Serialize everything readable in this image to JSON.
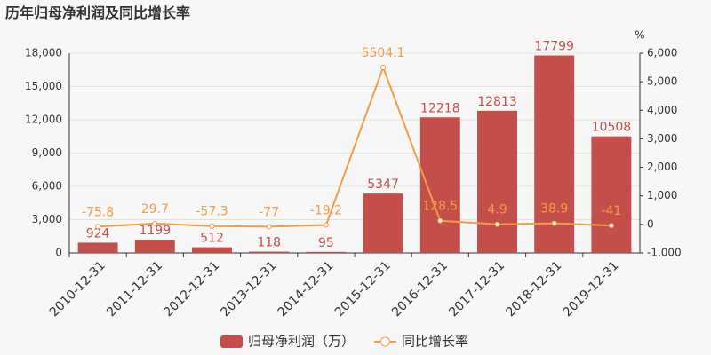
{
  "chart_data": {
    "type": "bar",
    "title": "历年归母净利润及同比增长率",
    "categories": [
      "2010-12-31",
      "2011-12-31",
      "2012-12-31",
      "2013-12-31",
      "2014-12-31",
      "2015-12-31",
      "2016-12-31",
      "2017-12-31",
      "2018-12-31",
      "2019-12-31"
    ],
    "series": [
      {
        "name": "归母净利润（万）",
        "type": "bar",
        "color": "#c44e4a",
        "values": [
          924,
          1199,
          512,
          118,
          95,
          5347,
          12218,
          12813,
          17799,
          10508
        ]
      },
      {
        "name": "同比增长率",
        "type": "line",
        "axis": "y2",
        "color": "#f29b48",
        "values": [
          -75.8,
          29.7,
          -57.3,
          -77,
          -19.2,
          5504.1,
          128.5,
          4.9,
          38.9,
          -41
        ]
      }
    ],
    "ylim": [
      0,
      18000
    ],
    "yticks": [
      0,
      {
        "value": 3000,
        "label": "3,000"
      },
      {
        "value": 6000,
        "label": "6,000"
      },
      {
        "value": 9000,
        "label": "9,000"
      },
      {
        "value": 12000,
        "label": "12,000"
      },
      {
        "value": 15000,
        "label": "15,000"
      },
      {
        "value": 18000,
        "label": "18,000"
      }
    ],
    "y2lim": [
      -1000,
      6000
    ],
    "y2ticks": [
      {
        "value": -1000,
        "label": "-1,000"
      },
      0,
      {
        "value": 1000,
        "label": "1,000"
      },
      {
        "value": 2000,
        "label": "2,000"
      },
      {
        "value": 3000,
        "label": "3,000"
      },
      {
        "value": 4000,
        "label": "4,000"
      },
      {
        "value": 5000,
        "label": "5,000"
      },
      {
        "value": 6000,
        "label": "6,000"
      }
    ],
    "y2label": "%",
    "grid": true
  }
}
